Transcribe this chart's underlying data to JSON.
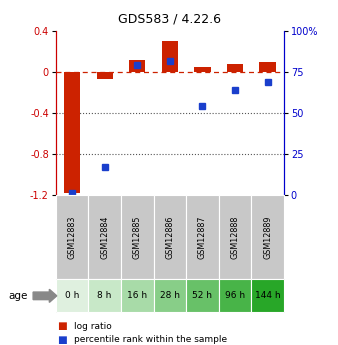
{
  "title": "GDS583 / 4.22.6",
  "samples": [
    "GSM12883",
    "GSM12884",
    "GSM12885",
    "GSM12886",
    "GSM12887",
    "GSM12888",
    "GSM12889"
  ],
  "ages": [
    "0 h",
    "8 h",
    "16 h",
    "28 h",
    "52 h",
    "96 h",
    "144 h"
  ],
  "log_ratio": [
    -1.18,
    -0.07,
    0.12,
    0.3,
    0.05,
    0.08,
    0.1
  ],
  "percentile_rank": [
    1,
    17,
    79,
    82,
    54,
    64,
    69
  ],
  "ylim_left": [
    -1.2,
    0.4
  ],
  "ylim_right": [
    0,
    100
  ],
  "yticks_left": [
    -1.2,
    -0.8,
    -0.4,
    0.0,
    0.4
  ],
  "yticks_right": [
    0,
    25,
    50,
    75,
    100
  ],
  "bar_color": "#cc2200",
  "dot_color": "#1a3fcc",
  "dashed_line_color": "#cc2200",
  "dotted_line_color": "#555555",
  "sample_bg_color": "#c8c8c8",
  "age_colors": [
    "#dff0df",
    "#c8e8c8",
    "#a8dba8",
    "#88ce88",
    "#68c168",
    "#48b448",
    "#28a728"
  ],
  "left_spine_color": "#cc0000",
  "right_spine_color": "#0000cc"
}
